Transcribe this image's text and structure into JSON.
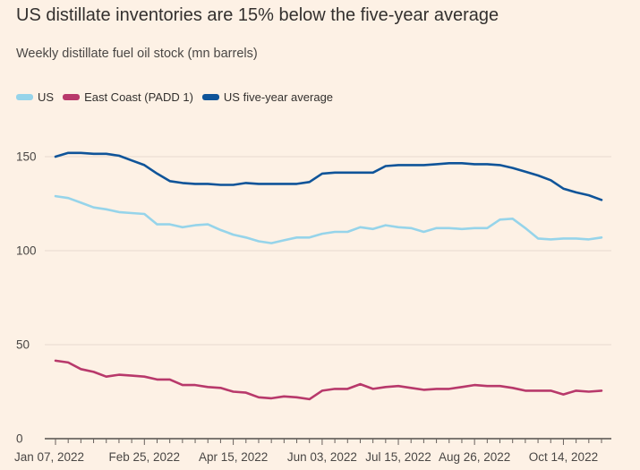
{
  "chart_data": {
    "type": "line",
    "title": "US distillate inventories are 15% below the five-year average",
    "subtitle": "Weekly distillate fuel oil stock (mn barrels)",
    "ylim": [
      0,
      160
    ],
    "yticks": [
      0,
      50,
      100,
      150
    ],
    "xtick_labels": [
      "Jan 07, 2022",
      "Feb 25, 2022",
      "Apr 15, 2022",
      "Jun 03, 2022",
      "Jul 15, 2022",
      "Aug 26, 2022",
      "Oct 14, 2022"
    ],
    "xtick_week_index": [
      0,
      7,
      14,
      21,
      27,
      33,
      40
    ],
    "num_weeks": 44,
    "series": [
      {
        "name": "US",
        "color": "#96d4ea",
        "values": [
          129,
          128,
          125.5,
          123,
          122,
          120.5,
          120,
          119.5,
          114,
          114,
          112.5,
          113.5,
          114,
          111,
          108.5,
          107,
          105,
          104,
          105.5,
          107,
          107,
          109,
          110,
          110,
          112.5,
          111.5,
          113.5,
          112.5,
          112,
          110,
          112,
          112,
          111.5,
          112,
          112,
          116.5,
          117,
          112,
          106.5,
          106,
          106.5,
          106.5,
          106,
          107
        ]
      },
      {
        "name": "East Coast (PADD 1)",
        "color": "#b8396b",
        "values": [
          41.5,
          40.5,
          37,
          35.5,
          33,
          34,
          33.5,
          33,
          31.5,
          31.5,
          28.5,
          28.5,
          27.5,
          27,
          25,
          24.5,
          22,
          21.5,
          22.5,
          22,
          21,
          25.5,
          26.5,
          26.5,
          29,
          26.5,
          27.5,
          28,
          27,
          26,
          26.5,
          26.5,
          27.5,
          28.5,
          28,
          28,
          27,
          25.5,
          25.5,
          25.5,
          23.5,
          25.5,
          25,
          25.5
        ]
      },
      {
        "name": "US five-year average",
        "color": "#0f5499",
        "values": [
          150,
          152,
          152,
          151.5,
          151.5,
          150.5,
          148,
          145.5,
          141,
          137,
          136,
          135.5,
          135.5,
          135,
          135,
          136,
          135.5,
          135.5,
          135.5,
          135.5,
          136.5,
          141,
          141.5,
          141.5,
          141.5,
          141.5,
          145,
          145.5,
          145.5,
          145.5,
          146,
          146.5,
          146.5,
          146,
          146,
          145.5,
          144,
          142,
          140,
          137.5,
          133,
          131,
          129.5,
          127
        ]
      }
    ]
  }
}
